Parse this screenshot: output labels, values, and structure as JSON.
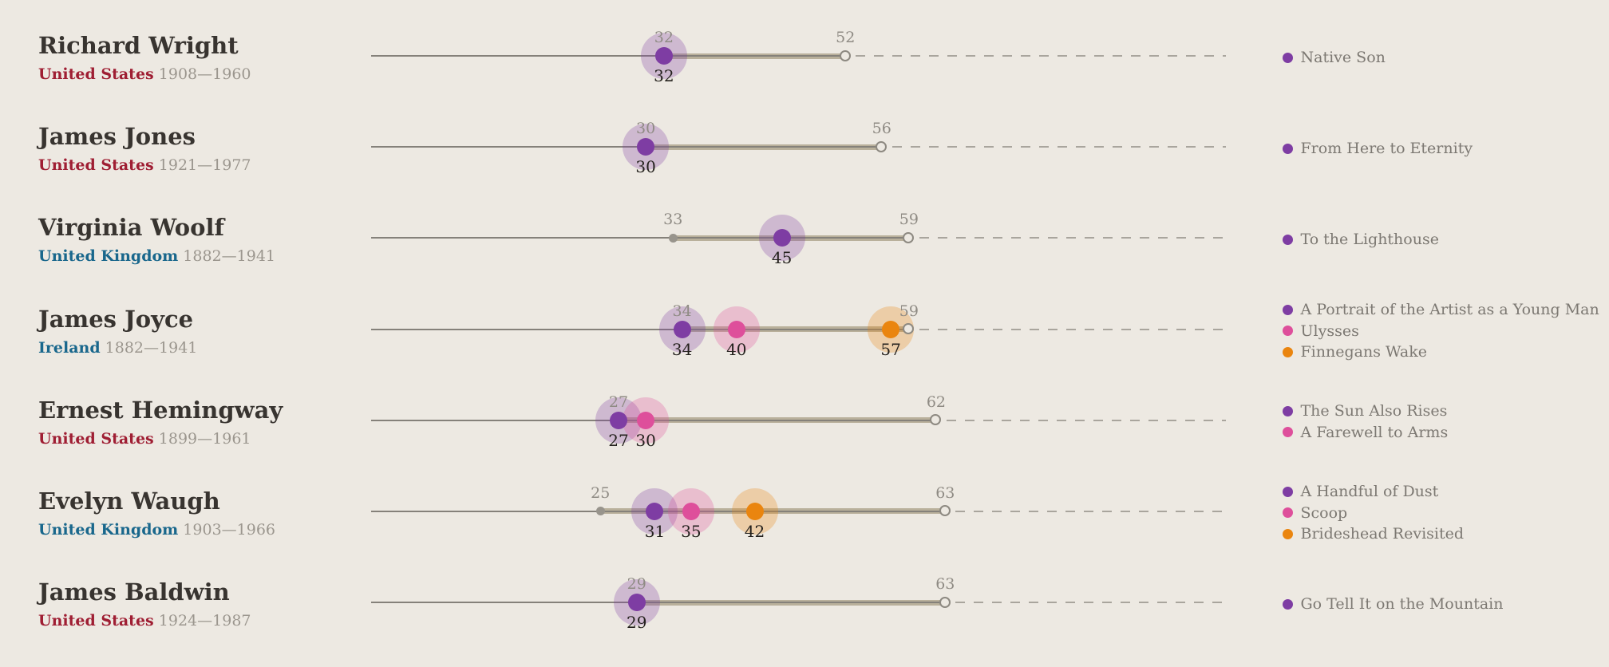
{
  "page": {
    "background": "#EDE9E2"
  },
  "colors": {
    "author_name": "#383430",
    "united_states": "#9F1E33",
    "united_kingdom_ireland": "#19678C",
    "life_years": "#9B968E",
    "life_line": "#85817A",
    "published_band": "#B9B09B",
    "post_death_dash": "#A9A59D",
    "age_label_gray": "#8F8B84",
    "age_label_black": "#24211D",
    "first_book_dot": "#98948C",
    "death_circle_stroke": "#8D8981",
    "legend_text": "#7C7872",
    "book_purple": "#7E3DA3",
    "book_pink": "#DE4F9B",
    "book_orange": "#EA850F"
  },
  "chart_data": {
    "type": "scatter",
    "title": "",
    "x_unit": "age in years",
    "axis": {
      "age_min": 0,
      "dash_extends_to_age": 94,
      "gridlines": false
    },
    "encoding": {
      "thin_line": "life from birth (age 0) to death",
      "tan_band": "span from age at first published book to age at death",
      "gray_dot": "age at first published book",
      "colored_dots": "ages when the listed notable novels were published",
      "open_circle": "age at death",
      "dashed_line": "extension beyond death to common maximum age",
      "gray_label_above": "age at first published book / age at death",
      "black_label_below": "age at publication of each listed novel"
    },
    "authors": [
      {
        "name": "Richard Wright",
        "country": "United States",
        "country_color_key": "united_states",
        "life_years": "1908—1960",
        "first_book_age": 32,
        "death_age": 52,
        "books": [
          {
            "title": "Native Son",
            "age": 32,
            "color_key": "book_purple"
          }
        ]
      },
      {
        "name": "James Jones",
        "country": "United States",
        "country_color_key": "united_states",
        "life_years": "1921—1977",
        "first_book_age": 30,
        "death_age": 56,
        "books": [
          {
            "title": "From Here to Eternity",
            "age": 30,
            "color_key": "book_purple"
          }
        ]
      },
      {
        "name": "Virginia Woolf",
        "country": "United Kingdom",
        "country_color_key": "united_kingdom_ireland",
        "life_years": "1882—1941",
        "first_book_age": 33,
        "death_age": 59,
        "books": [
          {
            "title": "To the Lighthouse",
            "age": 45,
            "color_key": "book_purple"
          }
        ]
      },
      {
        "name": "James Joyce",
        "country": "Ireland",
        "country_color_key": "united_kingdom_ireland",
        "life_years": "1882—1941",
        "first_book_age": 34,
        "death_age": 59,
        "books": [
          {
            "title": "A Portrait of the Artist as a Young Man",
            "age": 34,
            "color_key": "book_purple"
          },
          {
            "title": "Ulysses",
            "age": 40,
            "color_key": "book_pink"
          },
          {
            "title": "Finnegans Wake",
            "age": 57,
            "color_key": "book_orange"
          }
        ]
      },
      {
        "name": "Ernest Hemingway",
        "country": "United States",
        "country_color_key": "united_states",
        "life_years": "1899—1961",
        "first_book_age": 27,
        "death_age": 62,
        "books": [
          {
            "title": "The Sun Also Rises",
            "age": 27,
            "color_key": "book_purple"
          },
          {
            "title": "A Farewell to Arms",
            "age": 30,
            "color_key": "book_pink"
          }
        ]
      },
      {
        "name": "Evelyn Waugh",
        "country": "United Kingdom",
        "country_color_key": "united_kingdom_ireland",
        "life_years": "1903—1966",
        "first_book_age": 25,
        "death_age": 63,
        "books": [
          {
            "title": "A Handful of Dust",
            "age": 31,
            "color_key": "book_purple"
          },
          {
            "title": "Scoop",
            "age": 35,
            "color_key": "book_pink"
          },
          {
            "title": "Brideshead Revisited",
            "age": 42,
            "color_key": "book_orange"
          }
        ]
      },
      {
        "name": "James Baldwin",
        "country": "United States",
        "country_color_key": "united_states",
        "life_years": "1924—1987",
        "first_book_age": 29,
        "death_age": 63,
        "books": [
          {
            "title": "Go Tell It on the Mountain",
            "age": 29,
            "color_key": "book_purple"
          }
        ]
      }
    ]
  }
}
